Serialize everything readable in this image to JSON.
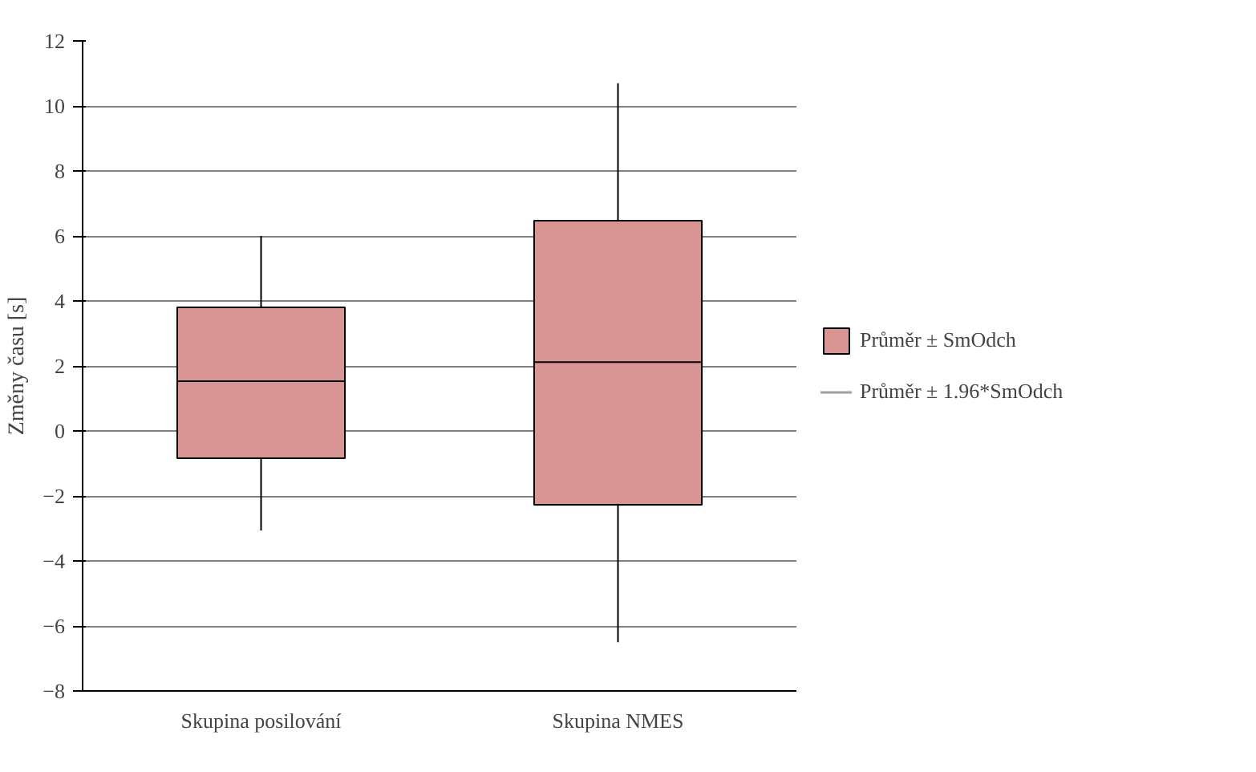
{
  "chart_data": {
    "type": "box",
    "ylabel": "Změny času [s]",
    "categories": [
      "Skupina posilování",
      "Skupina NMES"
    ],
    "series": [
      {
        "name": "Průměr ± SmOdch",
        "color": "#d99594",
        "boxes": [
          {
            "low": -3.06,
            "q1": -0.84,
            "median": 1.53,
            "q3": 3.8,
            "high": 6.0
          },
          {
            "low": -6.5,
            "q1": -2.27,
            "median": 2.12,
            "q3": 6.47,
            "high": 10.7
          }
        ]
      }
    ],
    "annotations": [
      "Průměr ± 1.96*SmOdch"
    ],
    "ylim": [
      -8,
      12
    ],
    "yticks": [
      -8,
      -6,
      -4,
      -2,
      0,
      2,
      4,
      6,
      8,
      10,
      12
    ],
    "grid": "y",
    "legend": "right"
  }
}
